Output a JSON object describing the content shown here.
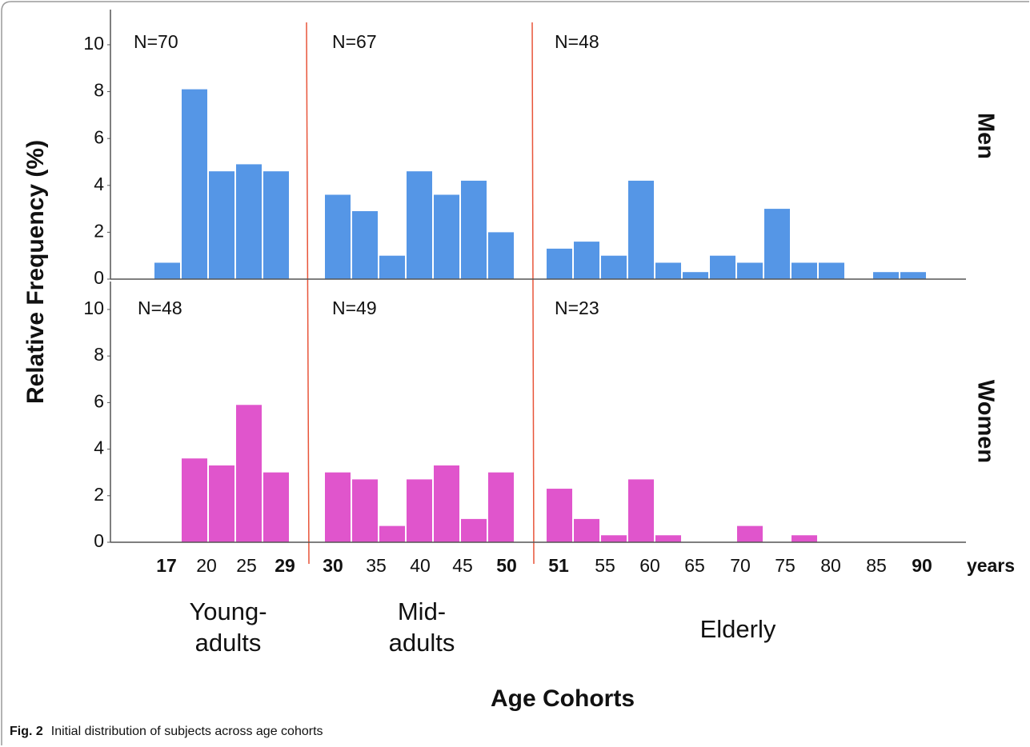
{
  "figure": {
    "ylabel": "Relative Frequency (%)",
    "xlabel": "Age Cohorts",
    "x_unit": "years",
    "cohorts": [
      {
        "name": [
          "Young-",
          "adults"
        ],
        "ticks": [
          "17",
          "20",
          "25",
          "29"
        ]
      },
      {
        "name": [
          "Mid-",
          "adults"
        ],
        "ticks": [
          "30",
          "35",
          "40",
          "45",
          "50"
        ]
      },
      {
        "name": [
          "Elderly"
        ],
        "ticks": [
          "51",
          "55",
          "60",
          "65",
          "70",
          "75",
          "80",
          "85",
          "90"
        ]
      }
    ]
  },
  "caption": {
    "label": "Fig. 2",
    "text": "Initial distribution of subjects across age cohorts"
  },
  "chart_data": [
    {
      "type": "bar",
      "title": "Men",
      "color": "#5596e6",
      "ylim": [
        0,
        11.5
      ],
      "yticks": [
        0,
        2,
        4,
        6,
        8,
        10
      ],
      "groups": [
        {
          "label": "N=70",
          "values": [
            0.7,
            8.1,
            4.6,
            4.9,
            4.6
          ]
        },
        {
          "label": "N=67",
          "values": [
            3.6,
            2.9,
            1.0,
            4.6,
            3.6,
            4.2,
            2.0
          ]
        },
        {
          "label": "N=48",
          "values": [
            1.3,
            1.6,
            1.0,
            4.2,
            0.7,
            0.3,
            1.0,
            0.7,
            3.0,
            0.7,
            0.7,
            0,
            0.3,
            0.3
          ]
        }
      ]
    },
    {
      "type": "bar",
      "title": "Women",
      "color": "#e055cc",
      "ylim": [
        0,
        11.2
      ],
      "yticks": [
        0,
        2,
        4,
        6,
        8,
        10
      ],
      "groups": [
        {
          "label": "N=48",
          "values": [
            0,
            3.6,
            3.3,
            5.9,
            3.0
          ]
        },
        {
          "label": "N=49",
          "values": [
            3.0,
            2.7,
            0.7,
            2.7,
            3.3,
            1.0,
            3.0
          ]
        },
        {
          "label": "N=23",
          "values": [
            2.3,
            1.0,
            0.3,
            2.7,
            0.3,
            0,
            0,
            0.7,
            0,
            0.3,
            0,
            0,
            0,
            0
          ]
        }
      ]
    }
  ]
}
